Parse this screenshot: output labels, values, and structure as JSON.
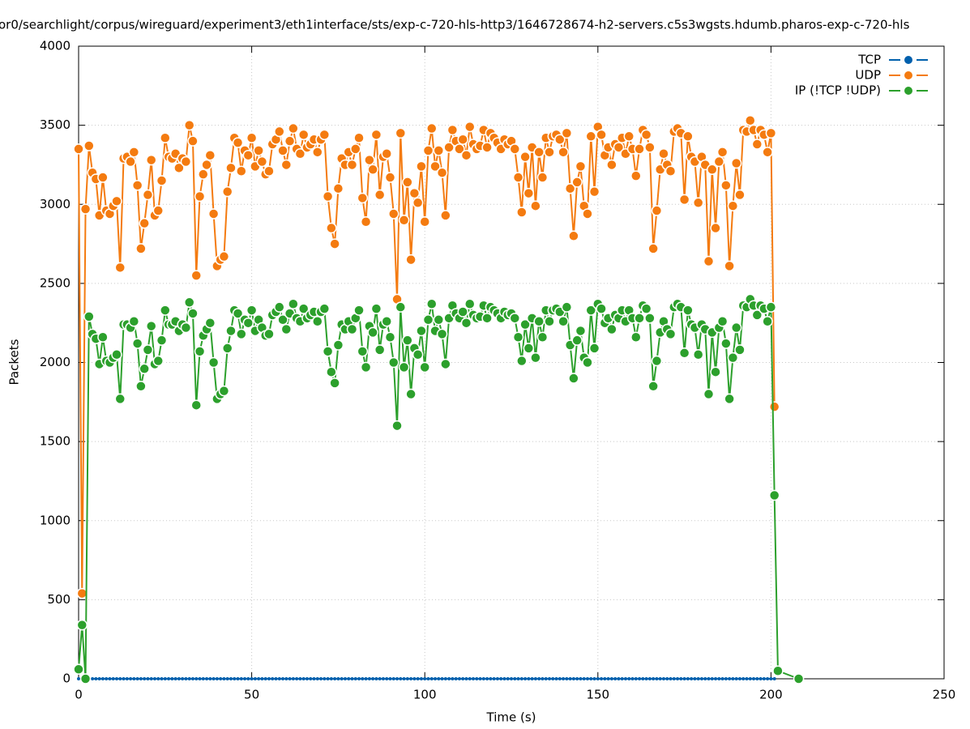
{
  "chart_data": {
    "type": "line",
    "title": "or0/searchlight/corpus/wireguard/experiment3/eth1interface/sts/exp-c-720-hls-http3/1646728674-h2-servers.c5s3wgsts.hdumb.pharos-exp-c-720-hls",
    "x_label": "Time (s)",
    "y_label": "Packets",
    "xlim": [
      0,
      250
    ],
    "xticks": [
      0,
      50,
      100,
      150,
      200,
      250
    ],
    "ylim": [
      0,
      4000
    ],
    "yticks": [
      0,
      500,
      1000,
      1500,
      2000,
      2500,
      3000,
      3500,
      4000
    ],
    "grid": true,
    "legend": "top-right",
    "x": [
      0,
      1,
      2,
      3,
      4,
      5,
      6,
      7,
      8,
      9,
      10,
      11,
      12,
      13,
      14,
      15,
      16,
      17,
      18,
      19,
      20,
      21,
      22,
      23,
      24,
      25,
      26,
      27,
      28,
      29,
      30,
      31,
      32,
      33,
      34,
      35,
      36,
      37,
      38,
      39,
      40,
      41,
      42,
      43,
      44,
      45,
      46,
      47,
      48,
      49,
      50,
      51,
      52,
      53,
      54,
      55,
      56,
      57,
      58,
      59,
      60,
      61,
      62,
      63,
      64,
      65,
      66,
      67,
      68,
      69,
      70,
      71,
      72,
      73,
      74,
      75,
      76,
      77,
      78,
      79,
      80,
      81,
      82,
      83,
      84,
      85,
      86,
      87,
      88,
      89,
      90,
      91,
      92,
      93,
      94,
      95,
      96,
      97,
      98,
      99,
      100,
      101,
      102,
      103,
      104,
      105,
      106,
      107,
      108,
      109,
      110,
      111,
      112,
      113,
      114,
      115,
      116,
      117,
      118,
      119,
      120,
      121,
      122,
      123,
      124,
      125,
      126,
      127,
      128,
      129,
      130,
      131,
      132,
      133,
      134,
      135,
      136,
      137,
      138,
      139,
      140,
      141,
      142,
      143,
      144,
      145,
      146,
      147,
      148,
      149,
      150,
      151,
      152,
      153,
      154,
      155,
      156,
      157,
      158,
      159,
      160,
      161,
      162,
      163,
      164,
      165,
      166,
      167,
      168,
      169,
      170,
      171,
      172,
      173,
      174,
      175,
      176,
      177,
      178,
      179,
      180,
      181,
      182,
      183,
      184,
      185,
      186,
      187,
      188,
      189,
      190,
      191,
      192,
      193,
      194,
      195,
      196,
      197,
      198,
      199,
      200,
      201,
      202,
      208
    ],
    "series": [
      {
        "name": "TCP",
        "color": "#0060ad",
        "values": [
          0,
          0,
          0,
          0,
          0,
          0,
          0,
          0,
          0,
          0,
          0,
          0,
          0,
          0,
          0,
          0,
          0,
          0,
          0,
          0,
          0,
          0,
          0,
          0,
          0,
          0,
          0,
          0,
          0,
          0,
          0,
          0,
          0,
          0,
          0,
          0,
          0,
          0,
          0,
          0,
          0,
          0,
          0,
          0,
          0,
          0,
          0,
          0,
          0,
          0,
          0,
          0,
          0,
          0,
          0,
          0,
          0,
          0,
          0,
          0,
          0,
          0,
          0,
          0,
          0,
          0,
          0,
          0,
          0,
          0,
          0,
          0,
          0,
          0,
          0,
          0,
          0,
          0,
          0,
          0,
          0,
          0,
          0,
          0,
          0,
          0,
          0,
          0,
          0,
          0,
          0,
          0,
          0,
          0,
          0,
          0,
          0,
          0,
          0,
          0,
          0,
          0,
          0,
          0,
          0,
          0,
          0,
          0,
          0,
          0,
          0,
          0,
          0,
          0,
          0,
          0,
          0,
          0,
          0,
          0,
          0,
          0,
          0,
          0,
          0,
          0,
          0,
          0,
          0,
          0,
          0,
          0,
          0,
          0,
          0,
          0,
          0,
          0,
          0,
          0,
          0,
          0,
          0,
          0,
          0,
          0,
          0,
          0,
          0,
          0,
          0,
          0,
          0,
          0,
          0,
          0,
          0,
          0,
          0,
          0,
          0,
          0,
          0,
          0,
          0,
          0,
          0,
          0,
          0,
          0,
          0,
          0,
          0,
          0,
          0,
          0,
          0,
          0,
          0,
          0,
          0,
          0,
          0,
          0,
          0,
          0,
          0,
          0,
          0,
          0,
          0,
          0,
          0,
          0,
          0,
          0,
          0,
          0,
          0,
          0,
          0,
          0,
          null,
          null
        ]
      },
      {
        "name": "UDP",
        "color": "#f47b10",
        "values": [
          3350,
          540,
          2970,
          3370,
          3200,
          3160,
          2930,
          3170,
          2960,
          2940,
          2990,
          3020,
          2600,
          3290,
          3300,
          3270,
          3330,
          3120,
          2720,
          2880,
          3060,
          3280,
          2930,
          2960,
          3150,
          3420,
          3300,
          3290,
          3320,
          3230,
          3290,
          3270,
          3500,
          3400,
          2550,
          3050,
          3190,
          3250,
          3310,
          2940,
          2610,
          2650,
          2670,
          3080,
          3230,
          3420,
          3390,
          3210,
          3340,
          3310,
          3420,
          3240,
          3340,
          3270,
          3190,
          3210,
          3380,
          3410,
          3460,
          3340,
          3250,
          3400,
          3480,
          3350,
          3320,
          3440,
          3360,
          3380,
          3410,
          3330,
          3410,
          3440,
          3050,
          2850,
          2750,
          3100,
          3290,
          3250,
          3330,
          3250,
          3350,
          3420,
          3040,
          2890,
          3280,
          3220,
          3440,
          3060,
          3300,
          3320,
          3170,
          2940,
          2400,
          3450,
          2900,
          3140,
          2650,
          3070,
          3010,
          3240,
          2890,
          3340,
          3480,
          3240,
          3340,
          3200,
          2930,
          3360,
          3470,
          3400,
          3350,
          3410,
          3310,
          3490,
          3380,
          3350,
          3370,
          3470,
          3360,
          3450,
          3420,
          3390,
          3350,
          3410,
          3380,
          3400,
          3350,
          3170,
          2950,
          3300,
          3070,
          3360,
          2990,
          3330,
          3170,
          3420,
          3330,
          3430,
          3440,
          3410,
          3330,
          3450,
          3100,
          2800,
          3140,
          3240,
          2990,
          2940,
          3430,
          3080,
          3490,
          3440,
          3310,
          3360,
          3250,
          3380,
          3360,
          3420,
          3320,
          3430,
          3350,
          3180,
          3350,
          3470,
          3440,
          3360,
          2720,
          2960,
          3220,
          3320,
          3250,
          3210,
          3460,
          3480,
          3450,
          3030,
          3430,
          3300,
          3270,
          3010,
          3300,
          3250,
          2640,
          3220,
          2850,
          3270,
          3330,
          3120,
          2610,
          2990,
          3260,
          3060,
          3470,
          3460,
          3530,
          3470,
          3380,
          3470,
          3440,
          3330,
          3450,
          1720,
          null,
          null
        ]
      },
      {
        "name": "IP (!TCP  !UDP)",
        "color": "#2ca02c",
        "values": [
          60,
          340,
          0,
          2290,
          2180,
          2150,
          1990,
          2160,
          2010,
          2000,
          2030,
          2050,
          1770,
          2240,
          2240,
          2220,
          2260,
          2120,
          1850,
          1960,
          2080,
          2230,
          1990,
          2010,
          2140,
          2330,
          2240,
          2240,
          2260,
          2200,
          2240,
          2220,
          2380,
          2310,
          1730,
          2070,
          2170,
          2210,
          2250,
          2000,
          1770,
          1800,
          1820,
          2090,
          2200,
          2330,
          2310,
          2180,
          2270,
          2250,
          2330,
          2200,
          2270,
          2220,
          2170,
          2180,
          2300,
          2320,
          2350,
          2270,
          2210,
          2310,
          2370,
          2280,
          2260,
          2340,
          2280,
          2300,
          2320,
          2260,
          2320,
          2340,
          2070,
          1940,
          1870,
          2110,
          2240,
          2210,
          2260,
          2210,
          2280,
          2330,
          2070,
          1970,
          2230,
          2190,
          2340,
          2080,
          2240,
          2260,
          2160,
          2000,
          1600,
          2350,
          1970,
          2140,
          1800,
          2090,
          2050,
          2200,
          1970,
          2270,
          2370,
          2200,
          2270,
          2180,
          1990,
          2280,
          2360,
          2310,
          2280,
          2320,
          2250,
          2370,
          2300,
          2280,
          2290,
          2360,
          2280,
          2350,
          2330,
          2310,
          2280,
          2320,
          2300,
          2310,
          2280,
          2160,
          2010,
          2240,
          2090,
          2280,
          2030,
          2260,
          2160,
          2330,
          2260,
          2330,
          2340,
          2320,
          2260,
          2350,
          2110,
          1900,
          2140,
          2200,
          2030,
          2000,
          2330,
          2090,
          2370,
          2340,
          2250,
          2280,
          2210,
          2300,
          2280,
          2330,
          2260,
          2330,
          2280,
          2160,
          2280,
          2360,
          2340,
          2280,
          1850,
          2010,
          2190,
          2260,
          2210,
          2180,
          2350,
          2370,
          2350,
          2060,
          2330,
          2240,
          2220,
          2050,
          2240,
          2210,
          1800,
          2190,
          1940,
          2220,
          2260,
          2120,
          1770,
          2030,
          2220,
          2080,
          2360,
          2350,
          2400,
          2360,
          2300,
          2360,
          2340,
          2260,
          2350,
          1160,
          50,
          0
        ]
      }
    ]
  }
}
